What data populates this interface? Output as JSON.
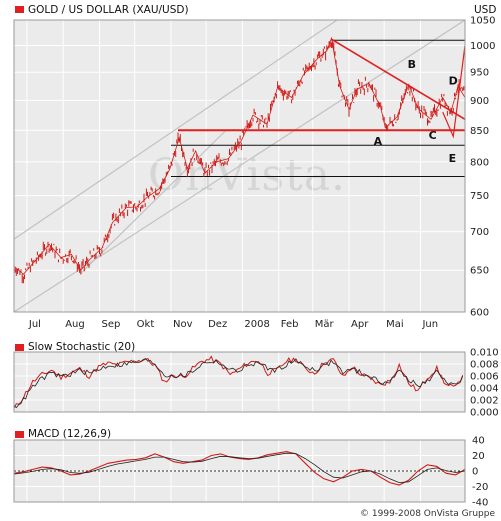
{
  "header": {
    "main_title": "GOLD / US DOLLAR (XAU/USD)",
    "currency": "USD",
    "stoch_title": "Slow Stochastic (20)",
    "macd_title": "MACD (12,26,9)"
  },
  "watermark": "OnVista.",
  "copyright": "© 1999-2008 OnVista Gruppe",
  "colors": {
    "series": "#d21b17",
    "panel_bg": "#ebebeb",
    "grid": "#ffffff",
    "channel": "#c2c2c2",
    "pattern": "#e0201e"
  },
  "chart_data": [
    {
      "type": "line",
      "title": "GOLD / US DOLLAR (XAU/USD)",
      "unit": "USD",
      "y_scale": "log",
      "ylim": [
        600,
        1050
      ],
      "yticks": [
        600,
        650,
        700,
        750,
        800,
        850,
        900,
        950,
        1000,
        1050
      ],
      "x_range": [
        "2007-06-20",
        "2008-07-09"
      ],
      "x_tick_labels": [
        {
          "label": "Jul",
          "date": "2007-07-01"
        },
        {
          "label": "Aug",
          "date": "2007-08-01"
        },
        {
          "label": "Sep",
          "date": "2007-09-01"
        },
        {
          "label": "Okt",
          "date": "2007-10-01"
        },
        {
          "label": "Nov",
          "date": "2007-11-01"
        },
        {
          "label": "Dez",
          "date": "2007-12-01"
        },
        {
          "label": "2008",
          "date": "2008-01-01"
        },
        {
          "label": "Feb",
          "date": "2008-02-01"
        },
        {
          "label": "Mär",
          "date": "2008-03-01"
        },
        {
          "label": "Apr",
          "date": "2008-04-01"
        },
        {
          "label": "Mai",
          "date": "2008-05-01"
        },
        {
          "label": "Jun",
          "date": "2008-06-01"
        }
      ],
      "series": [
        {
          "values": [
            [
              "2007-06-20",
              655
            ],
            [
              "2007-06-28",
              645
            ],
            [
              "2007-07-10",
              665
            ],
            [
              "2007-07-20",
              683
            ],
            [
              "2007-07-30",
              666
            ],
            [
              "2007-08-08",
              670
            ],
            [
              "2007-08-16",
              650
            ],
            [
              "2007-08-24",
              664
            ],
            [
              "2007-09-03",
              678
            ],
            [
              "2007-09-12",
              712
            ],
            [
              "2007-09-24",
              733
            ],
            [
              "2007-10-03",
              734
            ],
            [
              "2007-10-12",
              748
            ],
            [
              "2007-10-22",
              760
            ],
            [
              "2007-10-31",
              789
            ],
            [
              "2007-11-08",
              838
            ],
            [
              "2007-11-15",
              790
            ],
            [
              "2007-11-22",
              817
            ],
            [
              "2007-11-30",
              783
            ],
            [
              "2007-12-10",
              800
            ],
            [
              "2007-12-20",
              805
            ],
            [
              "2007-12-31",
              833
            ],
            [
              "2008-01-10",
              875
            ],
            [
              "2008-01-22",
              860
            ],
            [
              "2008-01-31",
              923
            ],
            [
              "2008-02-12",
              905
            ],
            [
              "2008-02-22",
              945
            ],
            [
              "2008-03-05",
              975
            ],
            [
              "2008-03-13",
              990
            ],
            [
              "2008-03-17",
              1014
            ],
            [
              "2008-03-24",
              925
            ],
            [
              "2008-04-01",
              885
            ],
            [
              "2008-04-08",
              920
            ],
            [
              "2008-04-18",
              930
            ],
            [
              "2008-04-28",
              888
            ],
            [
              "2008-05-02",
              854
            ],
            [
              "2008-05-12",
              872
            ],
            [
              "2008-05-22",
              928
            ],
            [
              "2008-05-30",
              886
            ],
            [
              "2008-06-10",
              868
            ],
            [
              "2008-06-20",
              905
            ],
            [
              "2008-06-27",
              880
            ],
            [
              "2008-07-03",
              925
            ],
            [
              "2008-07-09",
              905
            ]
          ]
        }
      ],
      "annotations": [
        "A",
        "B",
        "C",
        "D",
        "E"
      ],
      "legend": "none",
      "grid": true
    },
    {
      "type": "line",
      "title": "Slow Stochastic (20)",
      "ylim": [
        0.0,
        0.01
      ],
      "yticks": [
        0.0,
        0.002,
        0.004,
        0.006,
        0.008,
        0.01
      ],
      "ytick_labels": [
        "0.000",
        "0.002",
        "0.004",
        "0.006",
        "0.008",
        "0.010"
      ],
      "series": [
        {
          "values": [
            0.0005,
            0.0025,
            0.005,
            0.0062,
            0.007,
            0.0058,
            0.0065,
            0.0072,
            0.006,
            0.0075,
            0.0081,
            0.0078,
            0.0083,
            0.0085,
            0.0088,
            0.0078,
            0.005,
            0.0062,
            0.0058,
            0.0072,
            0.0085,
            0.0088,
            0.008,
            0.0062,
            0.0072,
            0.0082,
            0.0086,
            0.0065,
            0.007,
            0.0085,
            0.0088,
            0.0072,
            0.0065,
            0.0082,
            0.0087,
            0.0058,
            0.0075,
            0.0062,
            0.0055,
            0.0045,
            0.0052,
            0.0078,
            0.0048,
            0.0035,
            0.0058,
            0.0072,
            0.0045,
            0.004,
            0.007
          ]
        },
        {
          "values": [
            0.0008,
            0.002,
            0.0042,
            0.0056,
            0.0064,
            0.006,
            0.0063,
            0.0069,
            0.0064,
            0.0071,
            0.0078,
            0.0078,
            0.0081,
            0.0083,
            0.0086,
            0.0081,
            0.0062,
            0.0061,
            0.006,
            0.0068,
            0.008,
            0.0085,
            0.0082,
            0.0069,
            0.007,
            0.0078,
            0.0083,
            0.0072,
            0.007,
            0.008,
            0.0085,
            0.0077,
            0.007,
            0.0078,
            0.0084,
            0.0066,
            0.0071,
            0.0065,
            0.0058,
            0.005,
            0.0051,
            0.0068,
            0.0055,
            0.0042,
            0.0052,
            0.0066,
            0.0052,
            0.0044,
            0.006
          ]
        }
      ],
      "grid": true
    },
    {
      "type": "line",
      "title": "MACD (12,26,9)",
      "ylim": [
        -40,
        40
      ],
      "yticks": [
        -40,
        -20,
        0,
        20,
        40
      ],
      "reference_line": 0,
      "series": [
        {
          "values": [
            -3,
            -1,
            2,
            5,
            4,
            0,
            -5,
            -4,
            0,
            5,
            10,
            12,
            14,
            15,
            17,
            22,
            18,
            12,
            10,
            12,
            14,
            20,
            22,
            18,
            16,
            15,
            17,
            21,
            23,
            25,
            22,
            10,
            -2,
            -10,
            -14,
            -8,
            0,
            2,
            0,
            -8,
            -15,
            -18,
            -12,
            0,
            8,
            6,
            -3,
            -5,
            2
          ]
        },
        {
          "values": [
            -4,
            -2.5,
            -0.5,
            2,
            3,
            1.5,
            -2,
            -3,
            -1.5,
            2,
            6,
            9,
            11,
            13,
            15,
            18,
            18,
            15,
            12,
            11.5,
            12.5,
            16,
            19,
            18.5,
            17,
            16,
            16.5,
            19,
            21,
            23,
            22.5,
            16,
            8,
            -1,
            -8,
            -9,
            -5,
            -1,
            0,
            -4,
            -10,
            -15,
            -14,
            -6,
            2,
            4,
            0.5,
            -2,
            0
          ]
        }
      ],
      "grid": true
    }
  ]
}
